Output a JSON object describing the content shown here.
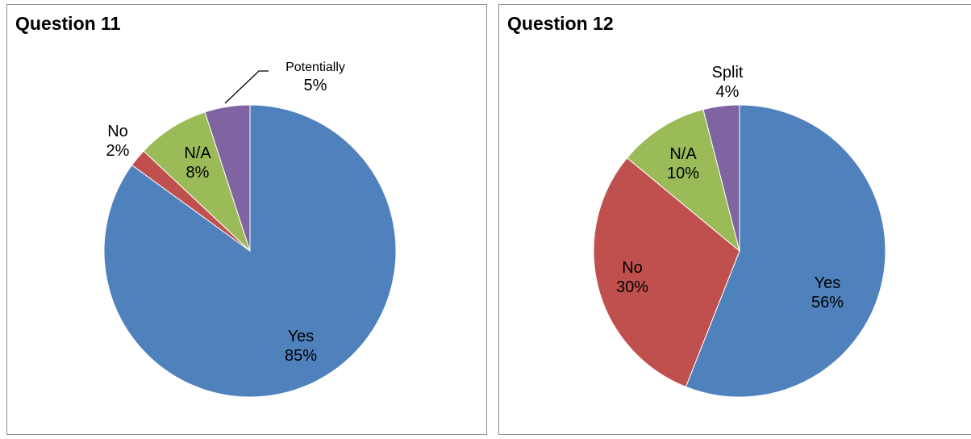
{
  "chart_data": [
    {
      "type": "pie",
      "title": "Question 11",
      "slices": [
        {
          "label": "Yes",
          "value": 85,
          "pct_label": "85%",
          "color": "#4f81bd"
        },
        {
          "label": "No",
          "value": 2,
          "pct_label": "2%",
          "color": "#c0504d"
        },
        {
          "label": "N/A",
          "value": 8,
          "pct_label": "8%",
          "color": "#9bbb59"
        },
        {
          "label": "Potentially",
          "value": 5,
          "pct_label": "5%",
          "color": "#8064a2"
        }
      ]
    },
    {
      "type": "pie",
      "title": "Question 12",
      "slices": [
        {
          "label": "Yes",
          "value": 56,
          "pct_label": "56%",
          "color": "#4f81bd"
        },
        {
          "label": "No",
          "value": 30,
          "pct_label": "30%",
          "color": "#c0504d"
        },
        {
          "label": "N/A",
          "value": 10,
          "pct_label": "10%",
          "color": "#9bbb59"
        },
        {
          "label": "Split",
          "value": 4,
          "pct_label": "4%",
          "color": "#8064a2"
        }
      ]
    }
  ]
}
